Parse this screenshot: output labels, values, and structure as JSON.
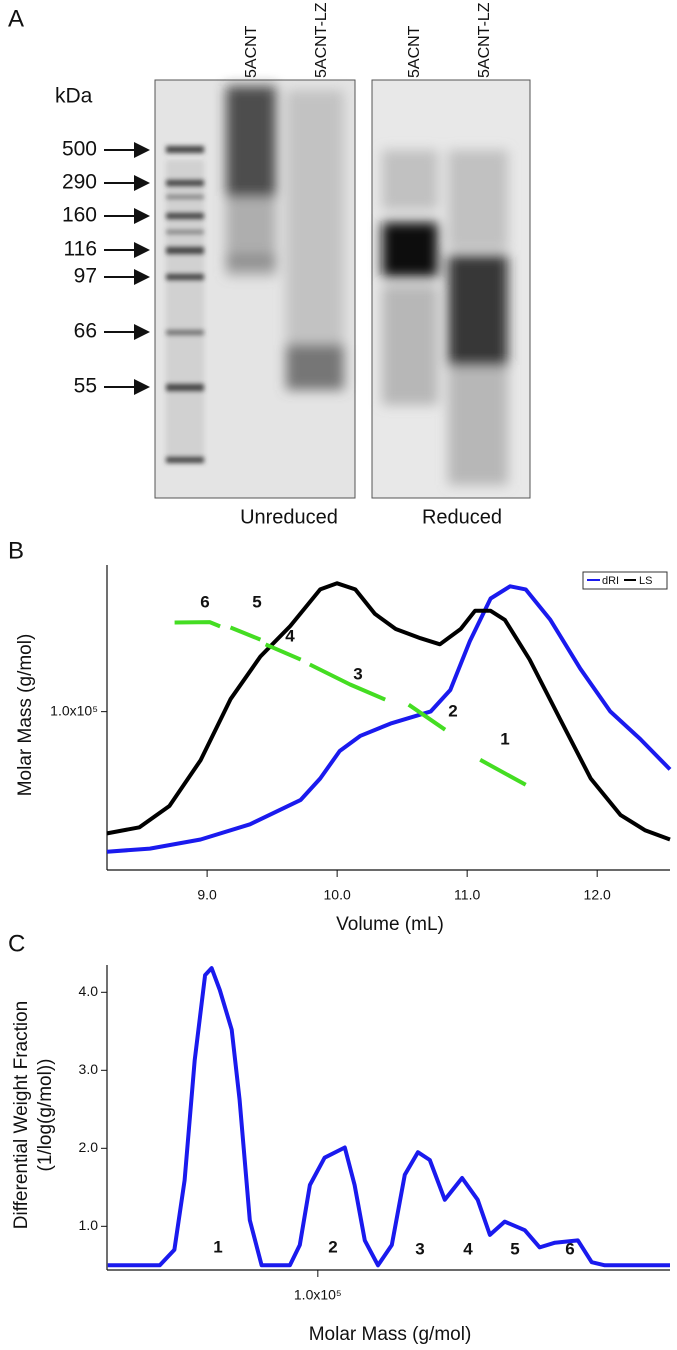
{
  "panel_labels": [
    "A",
    "B",
    "C"
  ],
  "gel": {
    "unit": "kDa",
    "markers": [
      500,
      290,
      160,
      116,
      97,
      66,
      55
    ],
    "lanes": [
      "5ACNT",
      "5ACNT-LZ",
      "5ACNT",
      "5ACNT-LZ"
    ],
    "conditions": [
      "Unreduced",
      "Reduced"
    ]
  },
  "chart_data": [
    {
      "type": "line",
      "x_label": "Volume (mL)",
      "y_label": "Molar Mass (g/mol)",
      "xlim": [
        8.23,
        12.56
      ],
      "xticks": [
        {
          "value": 9,
          "label": "9.0"
        },
        {
          "value": 10,
          "label": "10.0"
        },
        {
          "value": 11,
          "label": "11.0"
        },
        {
          "value": 12,
          "label": "12.0"
        }
      ],
      "ylim": [
        50000,
        190000
      ],
      "yscale": "log",
      "yticks": [
        {
          "value": 100000,
          "label": "1.0x10⁵"
        }
      ],
      "y2lim": [
        0,
        1
      ],
      "series": [
        {
          "name": "dRI",
          "color": "#1a1aee",
          "axis": "y2",
          "x": [
            8.23,
            8.56,
            8.95,
            9.33,
            9.72,
            9.87,
            10.02,
            10.18,
            10.41,
            10.72,
            10.87,
            11.02,
            11.18,
            11.33,
            11.45,
            11.64,
            11.87,
            12.1,
            12.33,
            12.56
          ],
          "values": [
            0.06,
            0.07,
            0.1,
            0.15,
            0.23,
            0.3,
            0.39,
            0.44,
            0.48,
            0.52,
            0.59,
            0.75,
            0.89,
            0.93,
            0.92,
            0.82,
            0.66,
            0.52,
            0.43,
            0.33
          ]
        },
        {
          "name": "LS",
          "color": "#000000",
          "axis": "y2",
          "x": [
            8.23,
            8.48,
            8.71,
            8.95,
            9.18,
            9.41,
            9.64,
            9.87,
            10.0,
            10.14,
            10.29,
            10.45,
            10.64,
            10.79,
            10.95,
            11.06,
            11.18,
            11.29,
            11.48,
            11.72,
            11.95,
            12.18,
            12.37,
            12.56
          ],
          "values": [
            0.12,
            0.14,
            0.21,
            0.36,
            0.56,
            0.7,
            0.8,
            0.92,
            0.94,
            0.92,
            0.84,
            0.79,
            0.76,
            0.74,
            0.79,
            0.85,
            0.85,
            0.82,
            0.69,
            0.49,
            0.3,
            0.18,
            0.13,
            0.1
          ]
        },
        {
          "color": "#44dd22",
          "x": [
            8.75,
            9.02,
            9.1,
            null,
            9.18,
            9.41,
            null,
            9.45,
            9.72,
            null,
            9.79,
            10.1,
            10.37,
            null,
            10.55,
            10.83,
            null,
            11.1,
            11.45
          ],
          "values": [
            147700,
            148000,
            145200,
            null,
            144500,
            137100,
            null,
            134200,
            125600,
            null,
            122900,
            112600,
            105400,
            null,
            103100,
            92400,
            null,
            81000,
            72600
          ]
        }
      ],
      "annotations": [
        "6",
        "5",
        "4",
        "3",
        "2",
        "1"
      ]
    },
    {
      "type": "line",
      "x_label": "Molar Mass (g/mol)",
      "y_label": [
        "Differential Weight Fraction",
        "(1/log(g/mol))"
      ],
      "xlim": [
        66800,
        196200
      ],
      "xscale": "log",
      "xticks": [
        {
          "value": 100000,
          "label": "1.0x10⁵"
        }
      ],
      "ylim": [
        0.44,
        4.35
      ],
      "yticks": [
        {
          "value": 1,
          "label": "1.0"
        },
        {
          "value": 2,
          "label": "2.0"
        },
        {
          "value": 3,
          "label": "3.0"
        },
        {
          "value": 4,
          "label": "4.0"
        }
      ],
      "series": [
        {
          "color": "#1a1aee",
          "x": [
            66900,
            73900,
            76000,
            77500,
            79000,
            80600,
            81600,
            82900,
            84800,
            86100,
            87800,
            89800,
            94800,
            96600,
            98500,
            101300,
            105300,
            107300,
            109400,
            112200,
            115200,
            118100,
            121100,
            123900,
            127500,
            131800,
            135800,
            139000,
            143000,
            148600,
            152900,
            157400,
            164500,
            168900,
            173200,
            196200
          ],
          "values": [
            0.5,
            0.5,
            0.7,
            1.59,
            3.13,
            4.22,
            4.31,
            4.03,
            3.52,
            2.62,
            1.08,
            0.5,
            0.5,
            0.76,
            1.53,
            1.88,
            2.01,
            1.53,
            0.82,
            0.5,
            0.76,
            1.66,
            1.95,
            1.85,
            1.34,
            1.62,
            1.34,
            0.89,
            1.06,
            0.95,
            0.73,
            0.79,
            0.82,
            0.54,
            0.5,
            0.5
          ]
        }
      ],
      "annotations": [
        "1",
        "2",
        "3",
        "4",
        "5",
        "6"
      ]
    }
  ]
}
